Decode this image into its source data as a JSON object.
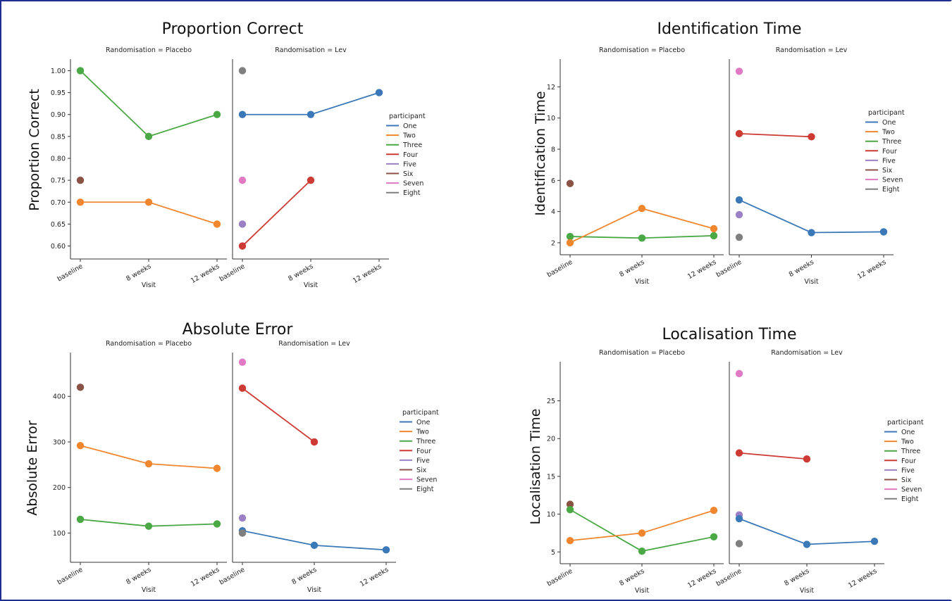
{
  "colors": {
    "One": "#3a78b8",
    "Two": "#f0862d",
    "Three": "#4aa845",
    "Four": "#cc3a33",
    "Five": "#9b80c6",
    "Six": "#8b5346",
    "Seven": "#e07ac5",
    "Eight": "#7f7f7f"
  },
  "legend": {
    "title": "participant",
    "entries": [
      "One",
      "Two",
      "Three",
      "Four",
      "Five",
      "Six",
      "Seven",
      "Eight"
    ]
  },
  "chart_data": [
    {
      "type": "line",
      "title": "Proportion Correct",
      "ylabel": "Proportion Correct",
      "xlabel": "Visit",
      "categories": [
        "baseline",
        "8 weeks",
        "12 weeks"
      ],
      "ylim": [
        0.58,
        1.02
      ],
      "yticks": [
        "0.60",
        "0.65",
        "0.70",
        "0.75",
        "0.80",
        "0.85",
        "0.90",
        "0.95",
        "1.00"
      ],
      "panels": [
        {
          "label": "Randomisation = Placebo",
          "series": [
            {
              "name": "Three",
              "values": [
                1.0,
                0.85,
                0.9
              ]
            },
            {
              "name": "Six",
              "values": [
                0.75,
                null,
                null
              ]
            },
            {
              "name": "Two",
              "values": [
                0.7,
                0.7,
                0.65
              ]
            }
          ]
        },
        {
          "label": "Randomisation = Lev",
          "series": [
            {
              "name": "Eight",
              "values": [
                1.0,
                null,
                null
              ]
            },
            {
              "name": "One",
              "values": [
                0.9,
                0.9,
                0.95
              ]
            },
            {
              "name": "Seven",
              "values": [
                0.75,
                null,
                null
              ]
            },
            {
              "name": "Five",
              "values": [
                0.65,
                null,
                null
              ]
            },
            {
              "name": "Four",
              "values": [
                0.6,
                0.75,
                null
              ]
            }
          ]
        }
      ]
    },
    {
      "type": "line",
      "title": "Identification Time",
      "ylabel": "Identification Time",
      "xlabel": "Visit",
      "categories": [
        "baseline",
        "8 weeks",
        "12 weeks"
      ],
      "ylim": [
        1.5,
        13.6
      ],
      "yticks": [
        "2",
        "4",
        "6",
        "8",
        "10",
        "12"
      ],
      "panels": [
        {
          "label": "Randomisation = Placebo",
          "series": [
            {
              "name": "Six",
              "values": [
                5.8,
                null,
                null
              ]
            },
            {
              "name": "Three",
              "values": [
                2.4,
                2.3,
                2.45
              ]
            },
            {
              "name": "Two",
              "values": [
                2.0,
                4.2,
                2.9
              ]
            }
          ]
        },
        {
          "label": "Randomisation = Lev",
          "series": [
            {
              "name": "Seven",
              "values": [
                13.0,
                null,
                null
              ]
            },
            {
              "name": "Four",
              "values": [
                9.0,
                8.8,
                null
              ]
            },
            {
              "name": "One",
              "values": [
                4.75,
                2.65,
                2.7
              ]
            },
            {
              "name": "Five",
              "values": [
                3.8,
                null,
                null
              ]
            },
            {
              "name": "Eight",
              "values": [
                2.35,
                null,
                null
              ]
            }
          ]
        }
      ]
    },
    {
      "type": "line",
      "title": "Absolute Error",
      "ylabel": "Absolute Error",
      "xlabel": "Visit",
      "categories": [
        "baseline",
        "8 weeks",
        "12 weeks"
      ],
      "ylim": [
        45,
        490
      ],
      "yticks": [
        "100",
        "200",
        "300",
        "400"
      ],
      "panels": [
        {
          "label": "Randomisation = Placebo",
          "series": [
            {
              "name": "Six",
              "values": [
                420,
                null,
                null
              ]
            },
            {
              "name": "Two",
              "values": [
                292,
                252,
                242
              ]
            },
            {
              "name": "Three",
              "values": [
                130,
                115,
                120
              ]
            }
          ]
        },
        {
          "label": "Randomisation = Lev",
          "series": [
            {
              "name": "Seven",
              "values": [
                475,
                null,
                null
              ]
            },
            {
              "name": "Four",
              "values": [
                418,
                300,
                null
              ]
            },
            {
              "name": "Five",
              "values": [
                133,
                null,
                null
              ]
            },
            {
              "name": "One",
              "values": [
                105,
                73,
                63
              ]
            },
            {
              "name": "Eight",
              "values": [
                100,
                null,
                null
              ]
            }
          ]
        }
      ]
    },
    {
      "type": "line",
      "title": "Localisation Time",
      "ylabel": "Localisation Time",
      "xlabel": "Visit",
      "categories": [
        "baseline",
        "8 weeks",
        "12 weeks"
      ],
      "ylim": [
        4,
        29.8
      ],
      "yticks": [
        "5",
        "10",
        "15",
        "20",
        "25"
      ],
      "panels": [
        {
          "label": "Randomisation = Placebo",
          "series": [
            {
              "name": "Six",
              "values": [
                11.3,
                null,
                null
              ]
            },
            {
              "name": "Three",
              "values": [
                10.6,
                5.1,
                7.0
              ]
            },
            {
              "name": "Two",
              "values": [
                6.5,
                7.5,
                10.5
              ]
            }
          ]
        },
        {
          "label": "Randomisation = Lev",
          "series": [
            {
              "name": "Seven",
              "values": [
                28.6,
                null,
                null
              ]
            },
            {
              "name": "Four",
              "values": [
                18.1,
                17.3,
                null
              ]
            },
            {
              "name": "Five",
              "values": [
                9.9,
                null,
                null
              ]
            },
            {
              "name": "One",
              "values": [
                9.4,
                6.0,
                6.4
              ]
            },
            {
              "name": "Eight",
              "values": [
                6.1,
                null,
                null
              ]
            }
          ]
        }
      ]
    }
  ]
}
